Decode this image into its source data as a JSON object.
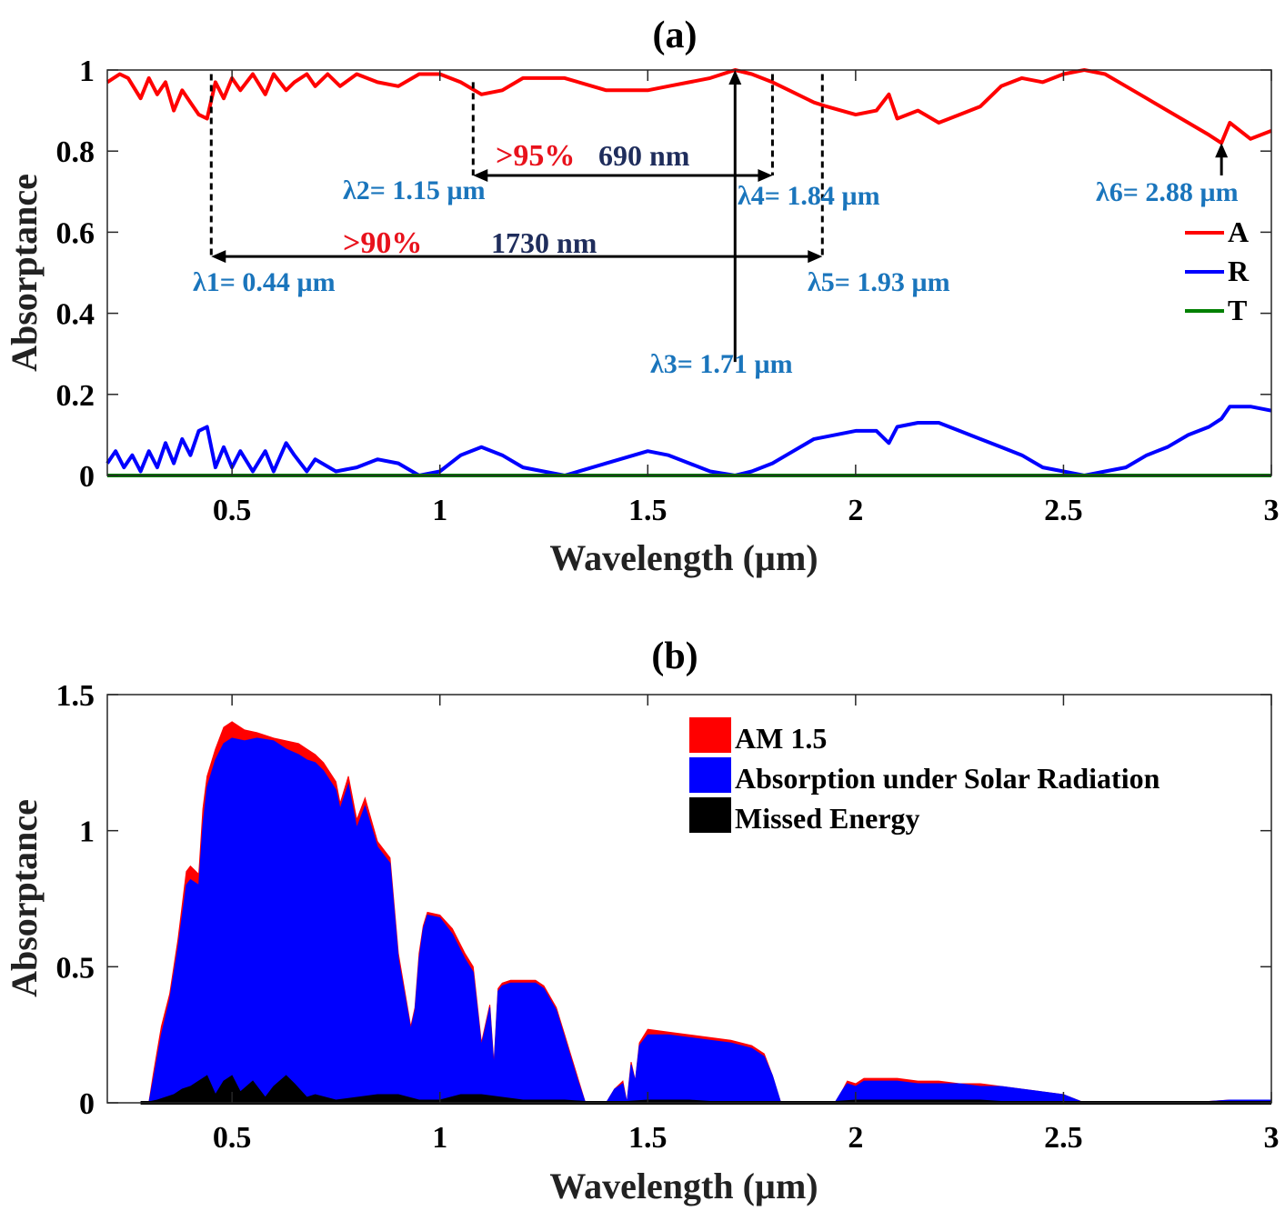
{
  "colors": {
    "absorptance": "#ff0000",
    "reflectance": "#0000ff",
    "transmittance": "#008000",
    "am15": "#ff0000",
    "absorbed": "#0000ff",
    "missed": "#000000",
    "annotation_blue": "#1a75bc",
    "annotation_red": "#e8121c",
    "annotation_navy": "#1f2d5c"
  },
  "chart_data": [
    {
      "type": "line",
      "title": "(a)",
      "xlabel": "Wavelength (µm)",
      "ylabel": "Absorptance",
      "xlim": [
        0.2,
        3.0
      ],
      "ylim": [
        0,
        1.0
      ],
      "xticks": [
        0.5,
        1,
        1.5,
        2,
        2.5,
        3
      ],
      "xtick_labels": [
        "0.5",
        "1",
        "1.5",
        "2",
        "2.5",
        "3"
      ],
      "yticks": [
        0,
        0.2,
        0.4,
        0.6,
        0.8,
        1
      ],
      "ytick_labels": [
        "0",
        "0.2",
        "0.4",
        "0.6",
        "0.8",
        "1"
      ],
      "grid": false,
      "legend_position": "right",
      "series": [
        {
          "name": "A",
          "x": [
            0.2,
            0.23,
            0.25,
            0.28,
            0.3,
            0.32,
            0.34,
            0.36,
            0.38,
            0.4,
            0.42,
            0.44,
            0.46,
            0.48,
            0.5,
            0.52,
            0.55,
            0.58,
            0.6,
            0.63,
            0.65,
            0.68,
            0.7,
            0.73,
            0.76,
            0.8,
            0.85,
            0.9,
            0.95,
            1.0,
            1.05,
            1.1,
            1.15,
            1.2,
            1.3,
            1.4,
            1.5,
            1.55,
            1.6,
            1.65,
            1.71,
            1.75,
            1.8,
            1.84,
            1.9,
            1.93,
            2.0,
            2.05,
            2.08,
            2.1,
            2.15,
            2.2,
            2.25,
            2.3,
            2.35,
            2.4,
            2.45,
            2.5,
            2.55,
            2.6,
            2.65,
            2.7,
            2.75,
            2.8,
            2.85,
            2.88,
            2.9,
            2.95,
            3.0
          ],
          "y": [
            0.97,
            0.99,
            0.98,
            0.93,
            0.98,
            0.94,
            0.97,
            0.9,
            0.95,
            0.92,
            0.89,
            0.88,
            0.97,
            0.93,
            0.98,
            0.95,
            0.99,
            0.94,
            0.99,
            0.95,
            0.97,
            0.99,
            0.96,
            0.99,
            0.96,
            0.99,
            0.97,
            0.96,
            0.99,
            0.99,
            0.97,
            0.94,
            0.95,
            0.98,
            0.98,
            0.95,
            0.95,
            0.96,
            0.97,
            0.98,
            1.0,
            0.99,
            0.97,
            0.95,
            0.92,
            0.91,
            0.89,
            0.9,
            0.94,
            0.88,
            0.9,
            0.87,
            0.89,
            0.91,
            0.96,
            0.98,
            0.97,
            0.99,
            1.0,
            0.99,
            0.96,
            0.93,
            0.9,
            0.87,
            0.84,
            0.82,
            0.87,
            0.83,
            0.85
          ]
        },
        {
          "name": "R",
          "x": [
            0.2,
            0.22,
            0.24,
            0.26,
            0.28,
            0.3,
            0.32,
            0.34,
            0.36,
            0.38,
            0.4,
            0.42,
            0.44,
            0.46,
            0.48,
            0.5,
            0.52,
            0.55,
            0.58,
            0.6,
            0.63,
            0.65,
            0.68,
            0.7,
            0.75,
            0.8,
            0.85,
            0.9,
            0.95,
            1.0,
            1.05,
            1.1,
            1.15,
            1.2,
            1.3,
            1.4,
            1.5,
            1.55,
            1.6,
            1.65,
            1.71,
            1.75,
            1.8,
            1.85,
            1.9,
            2.0,
            2.05,
            2.08,
            2.1,
            2.15,
            2.2,
            2.25,
            2.3,
            2.35,
            2.4,
            2.45,
            2.5,
            2.55,
            2.6,
            2.65,
            2.7,
            2.75,
            2.8,
            2.85,
            2.88,
            2.9,
            2.95,
            3.0
          ],
          "y": [
            0.03,
            0.06,
            0.02,
            0.05,
            0.01,
            0.06,
            0.02,
            0.08,
            0.03,
            0.09,
            0.05,
            0.11,
            0.12,
            0.02,
            0.07,
            0.02,
            0.06,
            0.01,
            0.06,
            0.01,
            0.08,
            0.05,
            0.01,
            0.04,
            0.01,
            0.02,
            0.04,
            0.03,
            0.0,
            0.01,
            0.05,
            0.07,
            0.05,
            0.02,
            0.0,
            0.03,
            0.06,
            0.05,
            0.03,
            0.01,
            0.0,
            0.01,
            0.03,
            0.06,
            0.09,
            0.11,
            0.11,
            0.08,
            0.12,
            0.13,
            0.13,
            0.11,
            0.09,
            0.07,
            0.05,
            0.02,
            0.01,
            0.0,
            0.01,
            0.02,
            0.05,
            0.07,
            0.1,
            0.12,
            0.14,
            0.17,
            0.17,
            0.16
          ]
        },
        {
          "name": "T",
          "x": [
            0.2,
            3.0
          ],
          "y": [
            0.0,
            0.0
          ]
        }
      ],
      "annotations": [
        {
          "text": "λ1= 0.44 µm",
          "x": 0.44
        },
        {
          "text": "λ2= 1.15 µm",
          "x": 1.15
        },
        {
          "text": "λ3= 1.71 µm",
          "x": 1.71
        },
        {
          "text": "λ4= 1.84 µm",
          "x": 1.84
        },
        {
          "text": "λ5= 1.93 µm",
          "x": 1.93
        },
        {
          "text": "λ6= 2.88 µm",
          "x": 2.88
        }
      ],
      "bands": [
        {
          "threshold_label": ">95%",
          "width_label": "690 nm",
          "x_start": 1.08,
          "x_end": 1.8,
          "y": 0.74
        },
        {
          "threshold_label": ">90%",
          "width_label": "1730 nm",
          "x_start": 0.45,
          "x_end": 1.92,
          "y": 0.54
        }
      ],
      "markers": [
        {
          "label": "λ3",
          "x": 1.71,
          "y_from": 0.28,
          "y_to": 1.0
        },
        {
          "label": "λ6",
          "x": 2.88,
          "y_from": 0.74,
          "y_to": 0.82
        }
      ]
    },
    {
      "type": "area",
      "title": "(b)",
      "xlabel": "Wavelength (µm)",
      "ylabel": "Absorptance",
      "xlim": [
        0.2,
        3.0
      ],
      "ylim": [
        0,
        1.5
      ],
      "xticks": [
        0.5,
        1,
        1.5,
        2,
        2.5,
        3
      ],
      "xtick_labels": [
        "0.5",
        "1",
        "1.5",
        "2",
        "2.5",
        "3"
      ],
      "yticks": [
        0,
        0.5,
        1,
        1.5
      ],
      "ytick_labels": [
        "0",
        "0.5",
        "1",
        "1.5"
      ],
      "grid": false,
      "legend_position": "top-right",
      "series": [
        {
          "name": "AM 1.5",
          "x": [
            0.28,
            0.3,
            0.31,
            0.33,
            0.35,
            0.37,
            0.39,
            0.4,
            0.42,
            0.43,
            0.44,
            0.46,
            0.48,
            0.5,
            0.53,
            0.56,
            0.6,
            0.63,
            0.66,
            0.68,
            0.7,
            0.72,
            0.75,
            0.76,
            0.78,
            0.8,
            0.82,
            0.85,
            0.88,
            0.9,
            0.93,
            0.94,
            0.95,
            0.96,
            0.97,
            1.0,
            1.03,
            1.06,
            1.08,
            1.1,
            1.12,
            1.13,
            1.14,
            1.15,
            1.17,
            1.2,
            1.23,
            1.25,
            1.28,
            1.3,
            1.33,
            1.35,
            1.36,
            1.38,
            1.4,
            1.42,
            1.44,
            1.45,
            1.46,
            1.47,
            1.48,
            1.5,
            1.55,
            1.6,
            1.65,
            1.7,
            1.75,
            1.78,
            1.8,
            1.82,
            1.9,
            1.95,
            1.97,
            1.98,
            2.0,
            2.02,
            2.05,
            2.1,
            2.15,
            2.2,
            2.25,
            2.3,
            2.35,
            2.4,
            2.45,
            2.5,
            2.55,
            2.6,
            2.8,
            2.9,
            3.0
          ],
          "y": [
            0.0,
            0.0,
            0.1,
            0.28,
            0.4,
            0.6,
            0.85,
            0.87,
            0.84,
            1.08,
            1.2,
            1.3,
            1.38,
            1.4,
            1.37,
            1.36,
            1.34,
            1.33,
            1.32,
            1.3,
            1.28,
            1.25,
            1.18,
            1.1,
            1.2,
            1.04,
            1.12,
            0.96,
            0.9,
            0.55,
            0.28,
            0.35,
            0.55,
            0.65,
            0.7,
            0.69,
            0.64,
            0.55,
            0.5,
            0.22,
            0.36,
            0.14,
            0.42,
            0.44,
            0.45,
            0.45,
            0.45,
            0.43,
            0.35,
            0.25,
            0.1,
            0.0,
            0.0,
            0.0,
            0.0,
            0.05,
            0.08,
            0.0,
            0.15,
            0.08,
            0.22,
            0.27,
            0.26,
            0.25,
            0.24,
            0.23,
            0.21,
            0.18,
            0.1,
            0.0,
            0.0,
            0.0,
            0.05,
            0.08,
            0.07,
            0.09,
            0.09,
            0.09,
            0.08,
            0.08,
            0.07,
            0.07,
            0.06,
            0.05,
            0.04,
            0.03,
            0.0,
            0.0,
            0.0,
            0.01,
            0.01
          ]
        },
        {
          "name": "Absorption under Solar Radiation",
          "x": [
            0.28,
            0.3,
            0.31,
            0.33,
            0.35,
            0.37,
            0.39,
            0.4,
            0.42,
            0.43,
            0.44,
            0.46,
            0.48,
            0.5,
            0.53,
            0.56,
            0.6,
            0.63,
            0.66,
            0.68,
            0.7,
            0.72,
            0.75,
            0.76,
            0.78,
            0.8,
            0.82,
            0.85,
            0.88,
            0.9,
            0.93,
            0.94,
            0.95,
            0.96,
            0.97,
            1.0,
            1.03,
            1.06,
            1.08,
            1.1,
            1.12,
            1.13,
            1.14,
            1.15,
            1.17,
            1.2,
            1.23,
            1.25,
            1.28,
            1.3,
            1.33,
            1.35,
            1.36,
            1.38,
            1.4,
            1.42,
            1.44,
            1.45,
            1.46,
            1.47,
            1.48,
            1.5,
            1.55,
            1.6,
            1.65,
            1.7,
            1.75,
            1.78,
            1.8,
            1.82,
            1.9,
            1.95,
            1.97,
            1.98,
            2.0,
            2.02,
            2.05,
            2.1,
            2.15,
            2.2,
            2.25,
            2.3,
            2.35,
            2.4,
            2.45,
            2.5,
            2.55,
            2.6,
            2.8,
            2.9,
            3.0
          ],
          "y": [
            0.0,
            0.0,
            0.08,
            0.25,
            0.38,
            0.57,
            0.8,
            0.82,
            0.8,
            1.02,
            1.16,
            1.26,
            1.32,
            1.34,
            1.33,
            1.34,
            1.33,
            1.3,
            1.28,
            1.26,
            1.25,
            1.22,
            1.15,
            1.08,
            1.17,
            1.01,
            1.09,
            0.94,
            0.88,
            0.53,
            0.27,
            0.34,
            0.53,
            0.64,
            0.69,
            0.68,
            0.62,
            0.53,
            0.48,
            0.21,
            0.35,
            0.13,
            0.41,
            0.43,
            0.44,
            0.44,
            0.44,
            0.42,
            0.34,
            0.24,
            0.09,
            0.0,
            0.0,
            0.0,
            0.0,
            0.05,
            0.07,
            0.0,
            0.14,
            0.08,
            0.21,
            0.25,
            0.25,
            0.24,
            0.23,
            0.22,
            0.2,
            0.17,
            0.1,
            0.0,
            0.0,
            0.0,
            0.05,
            0.07,
            0.06,
            0.08,
            0.08,
            0.08,
            0.07,
            0.07,
            0.07,
            0.06,
            0.06,
            0.05,
            0.04,
            0.03,
            0.0,
            0.0,
            0.0,
            0.01,
            0.01
          ]
        },
        {
          "name": "Missed Energy",
          "x": [
            0.29,
            0.32,
            0.34,
            0.36,
            0.38,
            0.4,
            0.42,
            0.44,
            0.46,
            0.48,
            0.5,
            0.52,
            0.55,
            0.58,
            0.6,
            0.63,
            0.65,
            0.68,
            0.7,
            0.75,
            0.8,
            0.85,
            0.9,
            0.95,
            1.0,
            1.05,
            1.1,
            1.15,
            1.2,
            1.3,
            1.4,
            1.5,
            1.6,
            1.7,
            1.8,
            1.9,
            2.0,
            2.1,
            2.2,
            2.3,
            2.4,
            2.5,
            2.6,
            2.8,
            3.0
          ],
          "y": [
            0.0,
            0.01,
            0.02,
            0.03,
            0.05,
            0.06,
            0.08,
            0.1,
            0.03,
            0.08,
            0.1,
            0.04,
            0.08,
            0.02,
            0.06,
            0.1,
            0.07,
            0.02,
            0.03,
            0.01,
            0.02,
            0.03,
            0.03,
            0.01,
            0.01,
            0.03,
            0.03,
            0.02,
            0.01,
            0.01,
            0.0,
            0.01,
            0.01,
            0.0,
            0.0,
            0.0,
            0.01,
            0.01,
            0.01,
            0.01,
            0.0,
            0.0,
            0.0,
            0.0,
            0.0
          ]
        }
      ]
    }
  ]
}
